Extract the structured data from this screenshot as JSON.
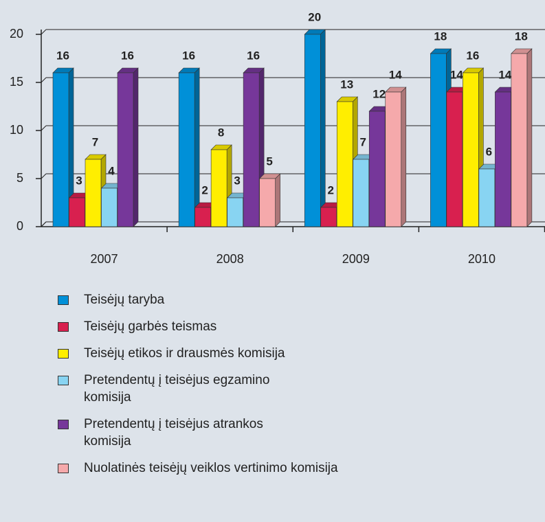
{
  "chart_data": {
    "type": "bar3d",
    "categories": [
      "2007",
      "2008",
      "2009",
      "2010"
    ],
    "series": [
      {
        "name": "Teisėjų taryba",
        "color": "#0090d8",
        "values": [
          16,
          16,
          20,
          18
        ]
      },
      {
        "name": "Teisėjų garbės teismas",
        "color": "#d8204f",
        "values": [
          3,
          2,
          2,
          14
        ]
      },
      {
        "name": "Teisėjų etikos ir drausmės komisija",
        "color": "#ffee00",
        "values": [
          7,
          8,
          13,
          16
        ]
      },
      {
        "name": "Pretendentų į teisėjus egzamino komisija",
        "color": "#88d4f2",
        "values": [
          4,
          3,
          7,
          6
        ]
      },
      {
        "name": "Pretendentų į teisėjus atrankos komisija",
        "color": "#76379a",
        "values": [
          16,
          16,
          12,
          14
        ]
      },
      {
        "name": "Nuolatinės teisėjų veiklos vertinimo komisija",
        "color": "#f5a9ab",
        "values": [
          null,
          5,
          14,
          18
        ]
      }
    ],
    "ylim": [
      0,
      20
    ],
    "yticks": [
      0,
      5,
      10,
      15,
      20
    ],
    "grid": true
  }
}
